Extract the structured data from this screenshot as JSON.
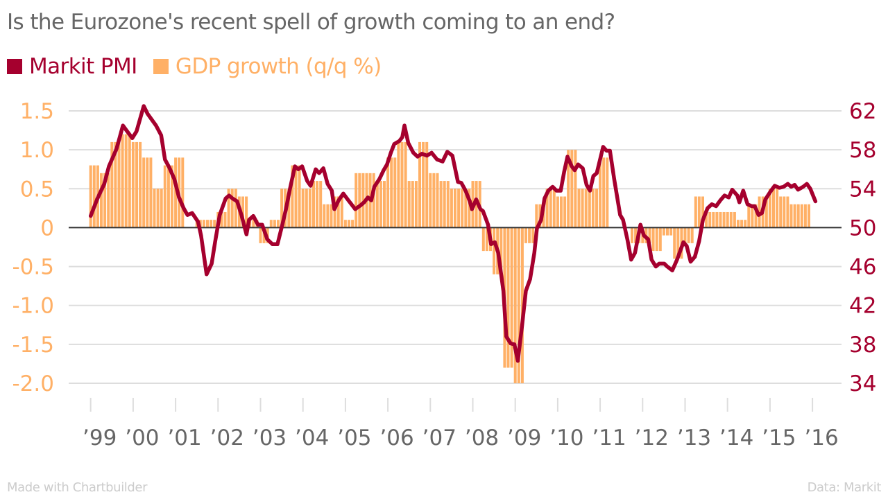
{
  "colors": {
    "pmi": "#a5002e",
    "gdp": "#ffb066",
    "title": "#666666",
    "grid": "#dddddd",
    "zero_line": "#333333",
    "footer": "#cccccc",
    "x_labels": "#666666"
  },
  "footer": {
    "left": "Made with Chartbuilder",
    "right": "Data: Markit"
  },
  "chart_data": {
    "type": "bar+line",
    "title": "Is the Eurozone's recent spell of growth coming to an end?",
    "legend": [
      {
        "name": "Markit PMI",
        "kind": "line",
        "axis": "right"
      },
      {
        "name": "GDP growth (q/q %)",
        "kind": "bar",
        "axis": "left"
      }
    ],
    "legend_position": "top-left",
    "grid": true,
    "x_axis": {
      "range": [
        1999,
        2016
      ],
      "tick_labels": [
        "’99",
        "’00",
        "’01",
        "’02",
        "’03",
        "’04",
        "’05",
        "’06",
        "’07",
        "’08",
        "’09",
        "’10",
        "’11",
        "’12",
        "’13",
        "’14",
        "’15",
        "’16"
      ],
      "tick_values": [
        1999,
        2000,
        2001,
        2002,
        2003,
        2004,
        2005,
        2006,
        2007,
        2008,
        2009,
        2010,
        2011,
        2012,
        2013,
        2014,
        2015,
        2016
      ]
    },
    "y_left": {
      "label": "GDP growth (q/q %)",
      "range": [
        -2.0,
        1.5
      ],
      "tick_values": [
        1.5,
        1.0,
        0.5,
        0,
        -0.5,
        -1.0,
        -1.5,
        -2.0
      ],
      "tick_labels": [
        "1.5",
        "1.0",
        "0.5",
        "0",
        "-0.5",
        "-1.0",
        "-1.5",
        "-2.0"
      ]
    },
    "y_right": {
      "label": "Markit PMI",
      "range": [
        34,
        62
      ],
      "tick_values": [
        62,
        58,
        54,
        50,
        46,
        42,
        38,
        34
      ],
      "tick_labels": [
        "62",
        "58",
        "54",
        "50",
        "46",
        "42",
        "38",
        "34"
      ]
    },
    "gdp_series": {
      "name": "GDP growth (q/q %)",
      "start_quarter": "1999-Q1",
      "frequency": "quarterly (drawn as 3 monthly bars)",
      "values": [
        0.8,
        0.7,
        1.1,
        1.2,
        1.1,
        0.9,
        0.5,
        0.8,
        0.9,
        0.0,
        0.1,
        0.1,
        0.2,
        0.5,
        0.4,
        0.1,
        -0.2,
        0.1,
        0.5,
        0.8,
        0.5,
        0.6,
        0.3,
        0.4,
        0.1,
        0.7,
        0.7,
        0.6,
        0.9,
        1.1,
        0.6,
        1.1,
        0.7,
        0.6,
        0.5,
        0.5,
        0.6,
        -0.3,
        -0.6,
        -1.8,
        -2.0,
        -0.2,
        0.3,
        0.5,
        0.4,
        1.0,
        0.5,
        0.5,
        0.9,
        0.0,
        0.0,
        -0.2,
        -0.2,
        -0.3,
        -0.1,
        -0.4,
        -0.2,
        0.4,
        0.2,
        0.2,
        0.2,
        0.1,
        0.3,
        0.4,
        0.5,
        0.4,
        0.3,
        0.3
      ]
    },
    "pmi_series": {
      "name": "Markit PMI",
      "points": [
        [
          1999.0,
          51.2
        ],
        [
          1999.15,
          52.9
        ],
        [
          1999.32,
          54.5
        ],
        [
          1999.43,
          56.3
        ],
        [
          1999.61,
          58.1
        ],
        [
          1999.76,
          60.5
        ],
        [
          1999.86,
          59.9
        ],
        [
          1999.98,
          59.2
        ],
        [
          2000.08,
          59.9
        ],
        [
          2000.25,
          62.5
        ],
        [
          2000.34,
          61.7
        ],
        [
          2000.54,
          60.5
        ],
        [
          2000.66,
          59.5
        ],
        [
          2000.75,
          57.0
        ],
        [
          2000.85,
          56.2
        ],
        [
          2000.97,
          55.0
        ],
        [
          2001.08,
          53.1
        ],
        [
          2001.19,
          52.0
        ],
        [
          2001.28,
          51.3
        ],
        [
          2001.39,
          51.5
        ],
        [
          2001.53,
          50.6
        ],
        [
          2001.6,
          49.2
        ],
        [
          2001.73,
          45.2
        ],
        [
          2001.85,
          46.3
        ],
        [
          2001.93,
          48.5
        ],
        [
          2002.04,
          51.3
        ],
        [
          2002.18,
          53.0
        ],
        [
          2002.26,
          53.3
        ],
        [
          2002.34,
          53.0
        ],
        [
          2002.45,
          52.7
        ],
        [
          2002.55,
          51.3
        ],
        [
          2002.67,
          49.3
        ],
        [
          2002.73,
          50.8
        ],
        [
          2002.83,
          51.2
        ],
        [
          2002.94,
          50.3
        ],
        [
          2003.04,
          50.3
        ],
        [
          2003.16,
          48.8
        ],
        [
          2003.28,
          48.3
        ],
        [
          2003.4,
          48.3
        ],
        [
          2003.52,
          50.4
        ],
        [
          2003.6,
          51.9
        ],
        [
          2003.69,
          53.9
        ],
        [
          2003.81,
          56.3
        ],
        [
          2003.89,
          56.0
        ],
        [
          2003.98,
          56.3
        ],
        [
          2004.1,
          54.8
        ],
        [
          2004.18,
          54.3
        ],
        [
          2004.3,
          56.0
        ],
        [
          2004.38,
          55.6
        ],
        [
          2004.48,
          56.1
        ],
        [
          2004.58,
          54.5
        ],
        [
          2004.68,
          53.8
        ],
        [
          2004.74,
          51.9
        ],
        [
          2004.84,
          52.8
        ],
        [
          2004.95,
          53.5
        ],
        [
          2005.07,
          52.8
        ],
        [
          2005.23,
          51.9
        ],
        [
          2005.36,
          52.3
        ],
        [
          2005.44,
          52.6
        ],
        [
          2005.53,
          53.1
        ],
        [
          2005.61,
          52.8
        ],
        [
          2005.68,
          54.2
        ],
        [
          2005.8,
          55.0
        ],
        [
          2005.9,
          55.9
        ],
        [
          2005.98,
          56.5
        ],
        [
          2006.07,
          57.7
        ],
        [
          2006.15,
          58.6
        ],
        [
          2006.27,
          58.9
        ],
        [
          2006.34,
          59.3
        ],
        [
          2006.39,
          60.5
        ],
        [
          2006.48,
          58.7
        ],
        [
          2006.6,
          57.7
        ],
        [
          2006.7,
          57.3
        ],
        [
          2006.8,
          57.6
        ],
        [
          2006.92,
          57.4
        ],
        [
          2007.03,
          57.7
        ],
        [
          2007.16,
          57.0
        ],
        [
          2007.29,
          56.8
        ],
        [
          2007.4,
          57.8
        ],
        [
          2007.52,
          57.4
        ],
        [
          2007.65,
          54.7
        ],
        [
          2007.73,
          54.6
        ],
        [
          2007.83,
          53.8
        ],
        [
          2007.93,
          52.7
        ],
        [
          2007.98,
          51.9
        ],
        [
          2008.08,
          52.9
        ],
        [
          2008.18,
          51.9
        ],
        [
          2008.24,
          51.7
        ],
        [
          2008.36,
          50.3
        ],
        [
          2008.43,
          48.3
        ],
        [
          2008.52,
          48.5
        ],
        [
          2008.6,
          47.4
        ],
        [
          2008.72,
          43.5
        ],
        [
          2008.79,
          38.8
        ],
        [
          2008.89,
          38.1
        ],
        [
          2008.98,
          38.0
        ],
        [
          2009.06,
          36.3
        ],
        [
          2009.16,
          39.9
        ],
        [
          2009.25,
          43.5
        ],
        [
          2009.35,
          44.7
        ],
        [
          2009.45,
          47.4
        ],
        [
          2009.51,
          49.9
        ],
        [
          2009.61,
          50.8
        ],
        [
          2009.69,
          53.0
        ],
        [
          2009.78,
          53.8
        ],
        [
          2009.88,
          54.2
        ],
        [
          2009.97,
          53.8
        ],
        [
          2010.07,
          53.8
        ],
        [
          2010.15,
          55.7
        ],
        [
          2010.23,
          57.3
        ],
        [
          2010.33,
          56.3
        ],
        [
          2010.4,
          55.9
        ],
        [
          2010.48,
          56.5
        ],
        [
          2010.59,
          56.1
        ],
        [
          2010.68,
          54.4
        ],
        [
          2010.76,
          53.8
        ],
        [
          2010.84,
          55.3
        ],
        [
          2010.92,
          55.6
        ],
        [
          2011.02,
          57.4
        ],
        [
          2011.07,
          58.3
        ],
        [
          2011.15,
          57.9
        ],
        [
          2011.23,
          57.9
        ],
        [
          2011.33,
          55.0
        ],
        [
          2011.47,
          51.3
        ],
        [
          2011.54,
          50.8
        ],
        [
          2011.64,
          48.8
        ],
        [
          2011.73,
          46.7
        ],
        [
          2011.82,
          47.4
        ],
        [
          2011.95,
          50.3
        ],
        [
          2012.03,
          49.2
        ],
        [
          2012.13,
          48.8
        ],
        [
          2012.21,
          46.7
        ],
        [
          2012.31,
          46.0
        ],
        [
          2012.39,
          46.3
        ],
        [
          2012.51,
          46.3
        ],
        [
          2012.58,
          46.0
        ],
        [
          2012.7,
          45.6
        ],
        [
          2012.81,
          46.7
        ],
        [
          2012.96,
          48.5
        ],
        [
          2013.04,
          48.1
        ],
        [
          2013.13,
          46.5
        ],
        [
          2013.23,
          47.0
        ],
        [
          2013.33,
          48.6
        ],
        [
          2013.42,
          50.8
        ],
        [
          2013.53,
          52.0
        ],
        [
          2013.63,
          52.4
        ],
        [
          2013.73,
          52.2
        ],
        [
          2013.83,
          52.8
        ],
        [
          2013.93,
          53.3
        ],
        [
          2014.03,
          53.1
        ],
        [
          2014.11,
          53.9
        ],
        [
          2014.23,
          53.3
        ],
        [
          2014.28,
          52.6
        ],
        [
          2014.37,
          53.8
        ],
        [
          2014.47,
          52.4
        ],
        [
          2014.57,
          52.2
        ],
        [
          2014.64,
          52.2
        ],
        [
          2014.73,
          51.3
        ],
        [
          2014.81,
          51.5
        ],
        [
          2014.89,
          52.9
        ],
        [
          2015.01,
          53.7
        ],
        [
          2015.11,
          54.3
        ],
        [
          2015.22,
          54.1
        ],
        [
          2015.32,
          54.2
        ],
        [
          2015.42,
          54.5
        ],
        [
          2015.5,
          54.2
        ],
        [
          2015.58,
          54.4
        ],
        [
          2015.66,
          53.9
        ],
        [
          2015.78,
          54.2
        ],
        [
          2015.87,
          54.5
        ],
        [
          2015.95,
          54.0
        ],
        [
          2016.07,
          52.7
        ]
      ]
    }
  }
}
